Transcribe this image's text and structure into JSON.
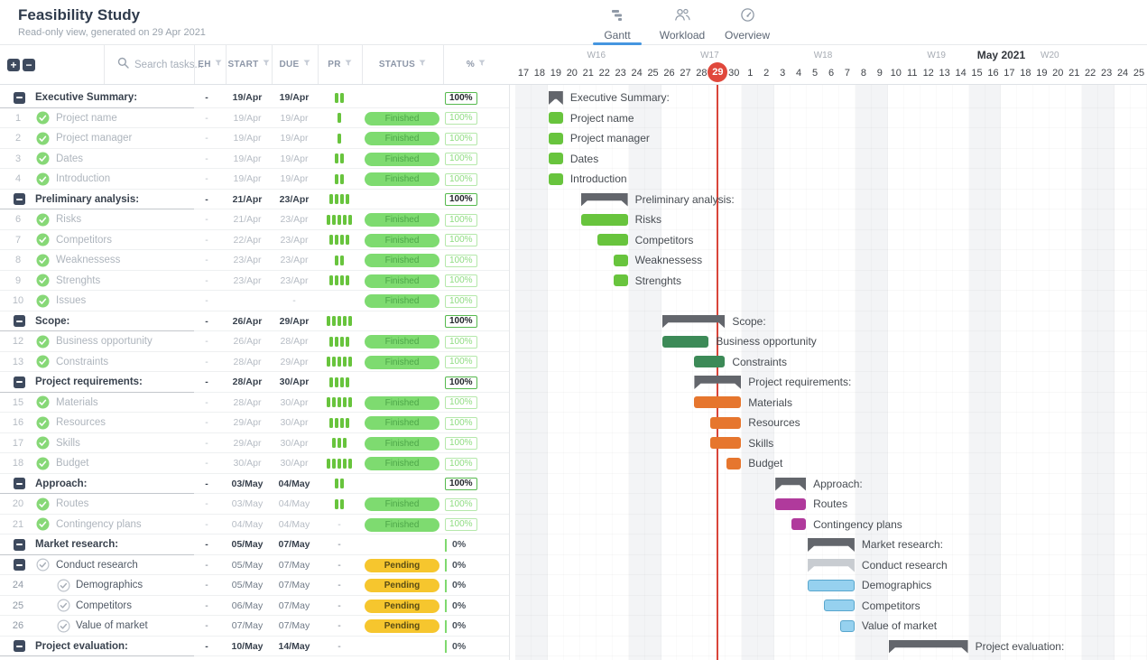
{
  "app": {
    "title": "Feasibility Study",
    "subtitle": "Read-only view, generated on 29 Apr 2021"
  },
  "tabs": [
    {
      "label": "Gantt",
      "icon": "gantt-icon",
      "active": true
    },
    {
      "label": "Workload",
      "icon": "workload-icon",
      "active": false
    },
    {
      "label": "Overview",
      "icon": "overview-icon",
      "active": false
    }
  ],
  "toolbar": {
    "search_placeholder": "Search tasks...",
    "headers": [
      "EH",
      "START",
      "DUE",
      "PR",
      "STATUS",
      "%"
    ]
  },
  "colors": {
    "accent": "#4596e0",
    "today": "#e0483c",
    "summary": "#63666c",
    "subsummary": "#c8ccd1",
    "green": "#68c43d",
    "darkgreen": "#3c8a57",
    "orange": "#e6762e",
    "magenta": "#b03a9c",
    "blue": "#96d1ef",
    "blueBorder": "#58a6cd",
    "priority": "#68c43d",
    "weekend": "#f3f4f6"
  },
  "timeline": {
    "month_label": "May 2021",
    "month_label_day_center": 29.5,
    "weeks": [
      {
        "label": "W16",
        "day_center": 4.5
      },
      {
        "label": "W17",
        "day_center": 11.5
      },
      {
        "label": "W18",
        "day_center": 18.5
      },
      {
        "label": "W19",
        "day_center": 25.5
      },
      {
        "label": "W20",
        "day_center": 32.5
      }
    ],
    "days": [
      17,
      18,
      19,
      20,
      21,
      22,
      23,
      24,
      25,
      26,
      27,
      28,
      29,
      30,
      1,
      2,
      3,
      4,
      5,
      6,
      7,
      8,
      9,
      10,
      11,
      12,
      13,
      14,
      15,
      16,
      17,
      18,
      19,
      20,
      21,
      22,
      23,
      24,
      25
    ],
    "today_index": 12,
    "today_label": "29",
    "weekend_indexes": [
      0,
      1,
      7,
      8,
      14,
      15,
      21,
      22,
      28,
      29,
      35,
      36
    ]
  },
  "rows": [
    {
      "n": "",
      "name": "Executive Summary:",
      "kind": "group",
      "level": 0,
      "collapse": true,
      "check": null,
      "eh": "-",
      "start": "19/Apr",
      "due": "19/Apr",
      "pr": 2,
      "status": "",
      "pct": "100%",
      "pctStyle": "group",
      "dim": false,
      "bar": {
        "s": 2,
        "len": 1,
        "type": "summary"
      }
    },
    {
      "n": "1",
      "name": "Project name",
      "kind": "task",
      "level": 1,
      "collapse": false,
      "check": "done",
      "eh": "-",
      "start": "19/Apr",
      "due": "19/Apr",
      "pr": 1,
      "status": "Finished",
      "pct": "100%",
      "pctStyle": "child",
      "dim": true,
      "bar": {
        "s": 2,
        "len": 1,
        "type": "green"
      }
    },
    {
      "n": "2",
      "name": "Project manager",
      "kind": "task",
      "level": 1,
      "collapse": false,
      "check": "done",
      "eh": "-",
      "start": "19/Apr",
      "due": "19/Apr",
      "pr": 1,
      "status": "Finished",
      "pct": "100%",
      "pctStyle": "child",
      "dim": true,
      "bar": {
        "s": 2,
        "len": 1,
        "type": "green"
      }
    },
    {
      "n": "3",
      "name": "Dates",
      "kind": "task",
      "level": 1,
      "collapse": false,
      "check": "done",
      "eh": "-",
      "start": "19/Apr",
      "due": "19/Apr",
      "pr": 2,
      "status": "Finished",
      "pct": "100%",
      "pctStyle": "child",
      "dim": true,
      "bar": {
        "s": 2,
        "len": 1,
        "type": "green"
      }
    },
    {
      "n": "4",
      "name": "Introduction",
      "kind": "task",
      "level": 1,
      "collapse": false,
      "check": "done",
      "eh": "-",
      "start": "19/Apr",
      "due": "19/Apr",
      "pr": 2,
      "status": "Finished",
      "pct": "100%",
      "pctStyle": "child",
      "dim": true,
      "bar": {
        "s": 2,
        "len": 1,
        "type": "green"
      }
    },
    {
      "n": "",
      "name": "Preliminary analysis:",
      "kind": "group",
      "level": 0,
      "collapse": true,
      "check": null,
      "eh": "-",
      "start": "21/Apr",
      "due": "23/Apr",
      "pr": 4,
      "status": "",
      "pct": "100%",
      "pctStyle": "group",
      "dim": false,
      "bar": {
        "s": 4,
        "len": 3,
        "type": "summary"
      }
    },
    {
      "n": "6",
      "name": "Risks",
      "kind": "task",
      "level": 1,
      "collapse": false,
      "check": "done",
      "eh": "-",
      "start": "21/Apr",
      "due": "23/Apr",
      "pr": 5,
      "status": "Finished",
      "pct": "100%",
      "pctStyle": "child",
      "dim": true,
      "bar": {
        "s": 4,
        "len": 3,
        "type": "green"
      }
    },
    {
      "n": "7",
      "name": "Competitors",
      "kind": "task",
      "level": 1,
      "collapse": false,
      "check": "done",
      "eh": "-",
      "start": "22/Apr",
      "due": "23/Apr",
      "pr": 4,
      "status": "Finished",
      "pct": "100%",
      "pctStyle": "child",
      "dim": true,
      "bar": {
        "s": 5,
        "len": 2,
        "type": "green"
      }
    },
    {
      "n": "8",
      "name": "Weaknessess",
      "kind": "task",
      "level": 1,
      "collapse": false,
      "check": "done",
      "eh": "-",
      "start": "23/Apr",
      "due": "23/Apr",
      "pr": 2,
      "status": "Finished",
      "pct": "100%",
      "pctStyle": "child",
      "dim": true,
      "bar": {
        "s": 6,
        "len": 1,
        "type": "green"
      }
    },
    {
      "n": "9",
      "name": "Strenghts",
      "kind": "task",
      "level": 1,
      "collapse": false,
      "check": "done",
      "eh": "-",
      "start": "23/Apr",
      "due": "23/Apr",
      "pr": 4,
      "status": "Finished",
      "pct": "100%",
      "pctStyle": "child",
      "dim": true,
      "bar": {
        "s": 6,
        "len": 1,
        "type": "green"
      }
    },
    {
      "n": "10",
      "name": "Issues",
      "kind": "task",
      "level": 1,
      "collapse": false,
      "check": "done",
      "eh": "-",
      "start": "",
      "due": "-",
      "pr": "",
      "status": "Finished",
      "pct": "100%",
      "pctStyle": "child",
      "dim": true,
      "bar": null
    },
    {
      "n": "",
      "name": "Scope:",
      "kind": "group",
      "level": 0,
      "collapse": true,
      "check": null,
      "eh": "-",
      "start": "26/Apr",
      "due": "29/Apr",
      "pr": 5,
      "status": "",
      "pct": "100%",
      "pctStyle": "group",
      "dim": false,
      "bar": {
        "s": 9,
        "len": 4,
        "type": "summary"
      }
    },
    {
      "n": "12",
      "name": "Business opportunity",
      "kind": "task",
      "level": 1,
      "collapse": false,
      "check": "done",
      "eh": "-",
      "start": "26/Apr",
      "due": "28/Apr",
      "pr": 4,
      "status": "Finished",
      "pct": "100%",
      "pctStyle": "child",
      "dim": true,
      "bar": {
        "s": 9,
        "len": 3,
        "type": "darkgreen"
      }
    },
    {
      "n": "13",
      "name": "Constraints",
      "kind": "task",
      "level": 1,
      "collapse": false,
      "check": "done",
      "eh": "-",
      "start": "28/Apr",
      "due": "29/Apr",
      "pr": 5,
      "status": "Finished",
      "pct": "100%",
      "pctStyle": "child",
      "dim": true,
      "bar": {
        "s": 11,
        "len": 2,
        "type": "darkgreen"
      }
    },
    {
      "n": "",
      "name": "Project requirements:",
      "kind": "group",
      "level": 0,
      "collapse": true,
      "check": null,
      "eh": "-",
      "start": "28/Apr",
      "due": "30/Apr",
      "pr": 4,
      "status": "",
      "pct": "100%",
      "pctStyle": "group",
      "dim": false,
      "bar": {
        "s": 11,
        "len": 3,
        "type": "summary"
      }
    },
    {
      "n": "15",
      "name": "Materials",
      "kind": "task",
      "level": 1,
      "collapse": false,
      "check": "done",
      "eh": "-",
      "start": "28/Apr",
      "due": "30/Apr",
      "pr": 5,
      "status": "Finished",
      "pct": "100%",
      "pctStyle": "child",
      "dim": true,
      "bar": {
        "s": 11,
        "len": 3,
        "type": "orange"
      }
    },
    {
      "n": "16",
      "name": "Resources",
      "kind": "task",
      "level": 1,
      "collapse": false,
      "check": "done",
      "eh": "-",
      "start": "29/Apr",
      "due": "30/Apr",
      "pr": 4,
      "status": "Finished",
      "pct": "100%",
      "pctStyle": "child",
      "dim": true,
      "bar": {
        "s": 12,
        "len": 2,
        "type": "orange"
      }
    },
    {
      "n": "17",
      "name": "Skills",
      "kind": "task",
      "level": 1,
      "collapse": false,
      "check": "done",
      "eh": "-",
      "start": "29/Apr",
      "due": "30/Apr",
      "pr": 3,
      "status": "Finished",
      "pct": "100%",
      "pctStyle": "child",
      "dim": true,
      "bar": {
        "s": 12,
        "len": 2,
        "type": "orange"
      }
    },
    {
      "n": "18",
      "name": "Budget",
      "kind": "task",
      "level": 1,
      "collapse": false,
      "check": "done",
      "eh": "-",
      "start": "30/Apr",
      "due": "30/Apr",
      "pr": 5,
      "status": "Finished",
      "pct": "100%",
      "pctStyle": "child",
      "dim": true,
      "bar": {
        "s": 13,
        "len": 1,
        "type": "orange"
      }
    },
    {
      "n": "",
      "name": "Approach:",
      "kind": "group",
      "level": 0,
      "collapse": true,
      "check": null,
      "eh": "-",
      "start": "03/May",
      "due": "04/May",
      "pr": 2,
      "status": "",
      "pct": "100%",
      "pctStyle": "group",
      "dim": false,
      "bar": {
        "s": 16,
        "len": 2,
        "type": "summary"
      }
    },
    {
      "n": "20",
      "name": "Routes",
      "kind": "task",
      "level": 1,
      "collapse": false,
      "check": "done",
      "eh": "-",
      "start": "03/May",
      "due": "04/May",
      "pr": 2,
      "status": "Finished",
      "pct": "100%",
      "pctStyle": "child",
      "dim": true,
      "bar": {
        "s": 16,
        "len": 2,
        "type": "magenta"
      }
    },
    {
      "n": "21",
      "name": "Contingency plans",
      "kind": "task",
      "level": 1,
      "collapse": false,
      "check": "done",
      "eh": "-",
      "start": "04/May",
      "due": "04/May",
      "pr": "-",
      "status": "Finished",
      "pct": "100%",
      "pctStyle": "child",
      "dim": true,
      "bar": {
        "s": 17,
        "len": 1,
        "type": "magenta"
      }
    },
    {
      "n": "",
      "name": "Market research:",
      "kind": "group",
      "level": 0,
      "collapse": true,
      "check": null,
      "eh": "-",
      "start": "05/May",
      "due": "07/May",
      "pr": "-",
      "status": "",
      "pct": "0%",
      "pctStyle": "zero",
      "dim": false,
      "bar": {
        "s": 18,
        "len": 3,
        "type": "summary"
      }
    },
    {
      "n": "",
      "name": "Conduct research",
      "kind": "task",
      "level": 1,
      "collapse": true,
      "check": "open",
      "eh": "-",
      "start": "05/May",
      "due": "07/May",
      "pr": "-",
      "status": "Pending",
      "pct": "0%",
      "pctStyle": "zero",
      "dim": false,
      "bar": {
        "s": 18,
        "len": 3,
        "type": "subsummary"
      }
    },
    {
      "n": "24",
      "name": "Demographics",
      "kind": "task",
      "level": 2,
      "collapse": false,
      "check": "open",
      "eh": "-",
      "start": "05/May",
      "due": "07/May",
      "pr": "-",
      "status": "Pending",
      "pct": "0%",
      "pctStyle": "zero",
      "dim": false,
      "bar": {
        "s": 18,
        "len": 3,
        "type": "blue"
      }
    },
    {
      "n": "25",
      "name": "Competitors",
      "kind": "task",
      "level": 2,
      "collapse": false,
      "check": "open",
      "eh": "-",
      "start": "06/May",
      "due": "07/May",
      "pr": "-",
      "status": "Pending",
      "pct": "0%",
      "pctStyle": "zero",
      "dim": false,
      "bar": {
        "s": 19,
        "len": 2,
        "type": "blue"
      }
    },
    {
      "n": "26",
      "name": "Value of market",
      "kind": "task",
      "level": 2,
      "collapse": false,
      "check": "open",
      "eh": "-",
      "start": "07/May",
      "due": "07/May",
      "pr": "-",
      "status": "Pending",
      "pct": "0%",
      "pctStyle": "zero",
      "dim": false,
      "bar": {
        "s": 20,
        "len": 1,
        "type": "blue"
      }
    },
    {
      "n": "",
      "name": "Project evaluation:",
      "kind": "group",
      "level": 0,
      "collapse": true,
      "check": null,
      "eh": "-",
      "start": "10/May",
      "due": "14/May",
      "pr": "-",
      "status": "",
      "pct": "0%",
      "pctStyle": "zero",
      "dim": false,
      "bar": {
        "s": 23,
        "len": 5,
        "type": "summary"
      }
    }
  ]
}
